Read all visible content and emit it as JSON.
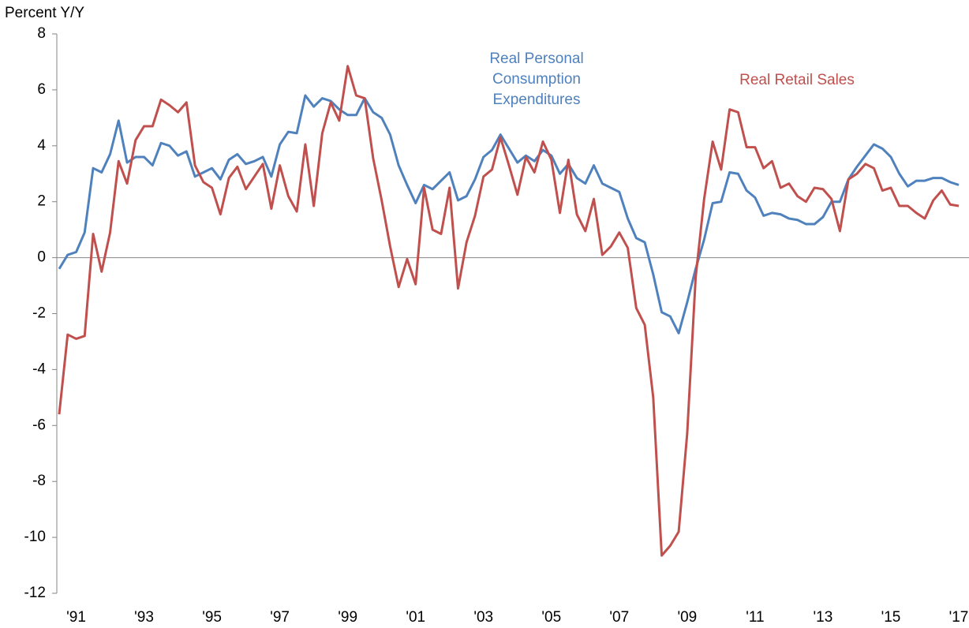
{
  "chart_data": {
    "type": "line",
    "y_axis_label": "Percent Y/Y",
    "categories": [
      null,
      null,
      "'91",
      null,
      null,
      null,
      null,
      null,
      null,
      null,
      "'93",
      null,
      null,
      null,
      null,
      null,
      null,
      null,
      "'95",
      null,
      null,
      null,
      null,
      null,
      null,
      null,
      "'97",
      null,
      null,
      null,
      null,
      null,
      null,
      null,
      "'99",
      null,
      null,
      null,
      null,
      null,
      null,
      null,
      "'01",
      null,
      null,
      null,
      null,
      null,
      null,
      null,
      "'03",
      null,
      null,
      null,
      null,
      null,
      null,
      null,
      "'05",
      null,
      null,
      null,
      null,
      null,
      null,
      null,
      "'07",
      null,
      null,
      null,
      null,
      null,
      null,
      null,
      "'09",
      null,
      null,
      null,
      null,
      null,
      null,
      null,
      "'11",
      null,
      null,
      null,
      null,
      null,
      null,
      null,
      "'13",
      null,
      null,
      null,
      null,
      null,
      null,
      null,
      "'15",
      null,
      null,
      null,
      null,
      null,
      null,
      null,
      "'17"
    ],
    "series": [
      {
        "name": "Real Personal Consumption Expenditures",
        "color": "#4f81bd",
        "values": [
          -0.4,
          0.1,
          0.2,
          0.9,
          3.2,
          3.05,
          3.7,
          4.9,
          3.4,
          3.6,
          3.6,
          3.3,
          4.1,
          4.0,
          3.65,
          3.8,
          2.9,
          3.05,
          3.2,
          2.8,
          3.5,
          3.7,
          3.35,
          3.45,
          3.6,
          2.9,
          4.05,
          4.5,
          4.45,
          5.8,
          5.4,
          5.7,
          5.6,
          5.3,
          5.1,
          5.1,
          5.7,
          5.2,
          5.0,
          4.4,
          3.3,
          2.6,
          1.95,
          2.6,
          2.45,
          2.75,
          3.05,
          2.05,
          2.2,
          2.8,
          3.6,
          3.85,
          4.4,
          3.9,
          3.4,
          3.65,
          3.45,
          3.85,
          3.65,
          3.0,
          3.35,
          2.85,
          2.65,
          3.3,
          2.65,
          2.5,
          2.35,
          1.4,
          0.7,
          0.55,
          -0.6,
          -1.95,
          -2.1,
          -2.7,
          -1.6,
          -0.4,
          0.65,
          1.95,
          2.0,
          3.05,
          3.0,
          2.4,
          2.15,
          1.5,
          1.6,
          1.55,
          1.4,
          1.35,
          1.2,
          1.2,
          1.45,
          2.0,
          2.0,
          2.8,
          3.25,
          3.65,
          4.05,
          3.9,
          3.6,
          3.0,
          2.55,
          2.75,
          2.75,
          2.85,
          2.85,
          2.7,
          2.6
        ]
      },
      {
        "name": "Real Retail Sales",
        "color": "#c0504d",
        "values": [
          -5.6,
          -2.75,
          -2.9,
          -2.8,
          0.85,
          -0.5,
          0.9,
          3.45,
          2.65,
          4.2,
          4.7,
          4.7,
          5.65,
          5.45,
          5.2,
          5.55,
          3.3,
          2.7,
          2.5,
          1.55,
          2.85,
          3.25,
          2.45,
          2.9,
          3.35,
          1.75,
          3.3,
          2.2,
          1.65,
          4.05,
          1.85,
          4.45,
          5.55,
          4.9,
          6.85,
          5.8,
          5.7,
          3.55,
          2.05,
          0.4,
          -1.05,
          -0.05,
          -0.95,
          2.5,
          1.0,
          0.85,
          2.5,
          -1.1,
          0.55,
          1.5,
          2.9,
          3.15,
          4.3,
          3.3,
          2.25,
          3.6,
          3.05,
          4.15,
          3.5,
          1.6,
          3.5,
          1.55,
          0.95,
          2.1,
          0.1,
          0.4,
          0.9,
          0.35,
          -1.8,
          -2.4,
          -5.0,
          -10.65,
          -10.3,
          -9.8,
          -6.3,
          -0.7,
          2.1,
          4.15,
          3.15,
          5.3,
          5.2,
          3.95,
          3.95,
          3.2,
          3.45,
          2.5,
          2.65,
          2.2,
          2.0,
          2.5,
          2.45,
          2.1,
          0.95,
          2.8,
          3.0,
          3.35,
          3.2,
          2.4,
          2.5,
          1.85,
          1.85,
          1.6,
          1.4,
          2.05,
          2.4,
          1.9,
          1.85
        ]
      }
    ],
    "ylim": [
      -12,
      8
    ],
    "yticks": [
      -12,
      -10,
      -8,
      -6,
      -4,
      -2,
      0,
      2,
      4,
      6,
      8
    ]
  }
}
